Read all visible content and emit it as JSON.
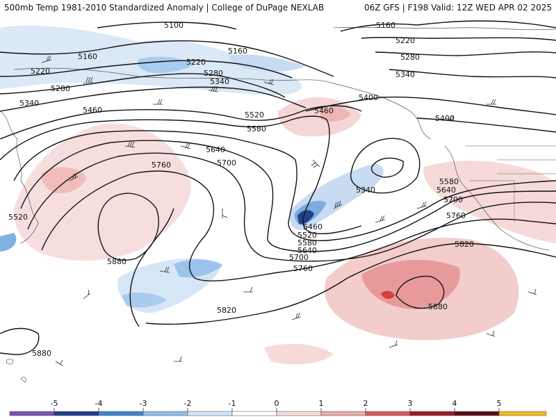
{
  "header": {
    "left_title": "500mb Temp 1981-2010 Standardized Anomaly | College of DuPage NEXLAB",
    "right_title": "06Z GFS | F198 Valid: 12Z WED APR 02 2025"
  },
  "contours": {
    "labels": [
      "5100",
      "5160",
      "5160",
      "5160",
      "5220",
      "5220",
      "5220",
      "5280",
      "5280",
      "5280",
      "5340",
      "5340",
      "5340",
      "5400",
      "5400",
      "5460",
      "5460",
      "5460",
      "5520",
      "5520",
      "5520",
      "5580",
      "5580",
      "5580",
      "5640",
      "5640",
      "5640",
      "5700",
      "5700",
      "5700",
      "5760",
      "5760",
      "5760",
      "5820",
      "5820",
      "5880",
      "5880",
      "5880"
    ]
  },
  "colorbar": {
    "ticks": [
      "-5",
      "-4",
      "-3",
      "-2",
      "-1",
      "0",
      "1",
      "2",
      "3",
      "4",
      "5"
    ],
    "colors": [
      "#7a52b8",
      "#1f3f8f",
      "#3d86d6",
      "#8fbfe8",
      "#d2e4f6",
      "#ffffff",
      "#f6dcdc",
      "#ecaaaa",
      "#d9585a",
      "#a01b25",
      "#5e0a14",
      "#f2b81c"
    ]
  }
}
